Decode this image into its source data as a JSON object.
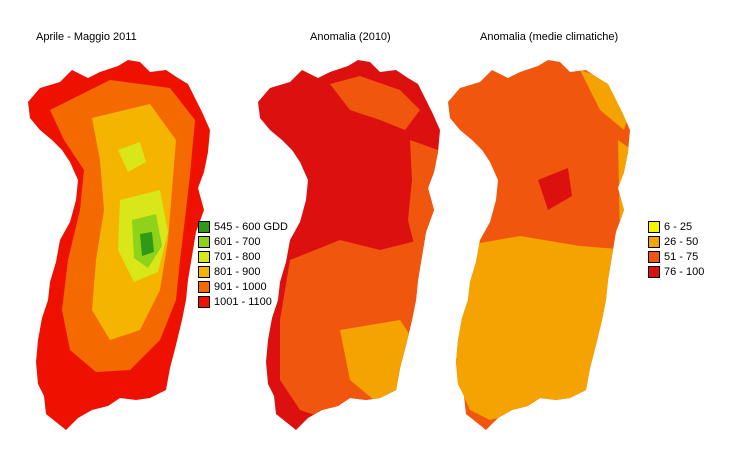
{
  "titles": {
    "map1": "Aprile - Maggio 2011",
    "map2": "Anomalia (2010)",
    "map3": "Anomalia (medie climatiche)"
  },
  "legend_gdd": [
    {
      "label": "545 - 600 GDD",
      "color": "#2f9a15"
    },
    {
      "label": "601 - 700",
      "color": "#8fd21a"
    },
    {
      "label": "701 - 800",
      "color": "#d8e61a"
    },
    {
      "label": "801 - 900",
      "color": "#f5b400"
    },
    {
      "label": "901 - 1000",
      "color": "#f46a00"
    },
    {
      "label": "1001 - 1100",
      "color": "#ee1100"
    }
  ],
  "legend_anomaly": [
    {
      "label": "6 - 25",
      "color": "#f5f500"
    },
    {
      "label": "26 - 50",
      "color": "#f5a300"
    },
    {
      "label": "51 - 75",
      "color": "#f0560d"
    },
    {
      "label": "76 - 100",
      "color": "#dd1010"
    }
  ]
}
